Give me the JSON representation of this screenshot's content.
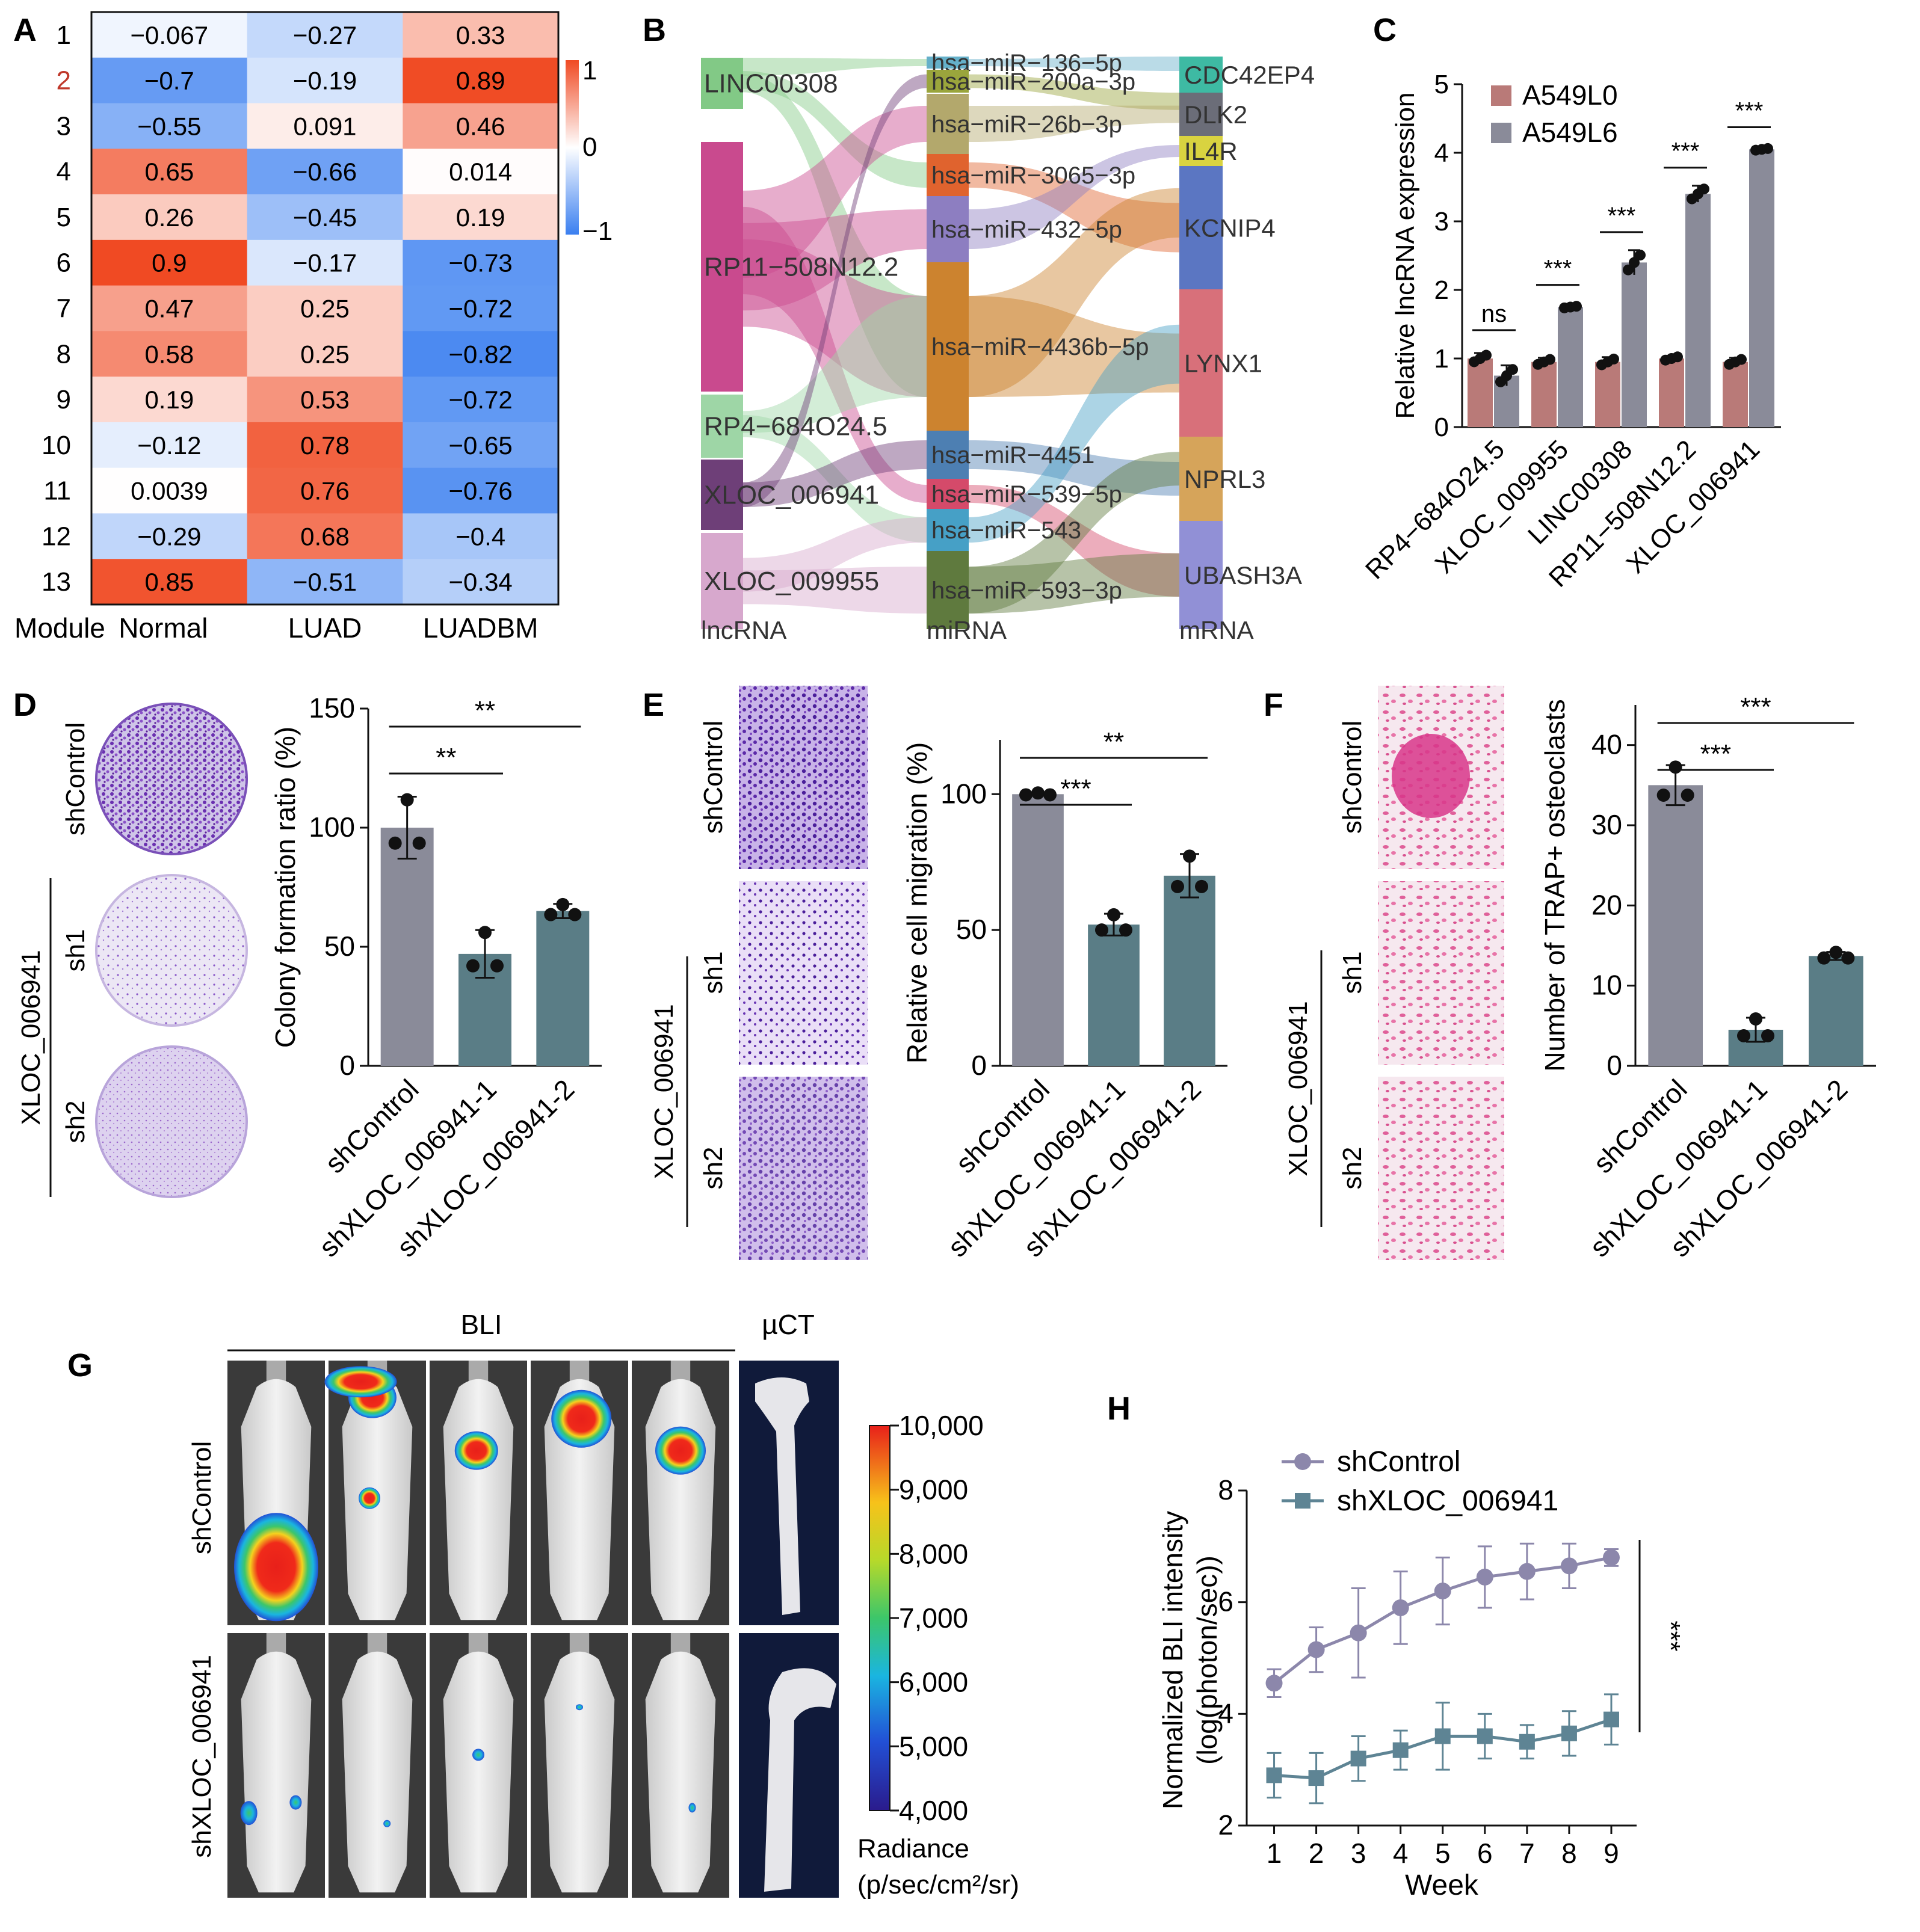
{
  "panels": {
    "A": "A",
    "B": "B",
    "C": "C",
    "D": "D",
    "E": "E",
    "F": "F",
    "G": "G",
    "H": "H"
  },
  "heatmap": {
    "rows": [
      "1",
      "2",
      "3",
      "4",
      "5",
      "6",
      "7",
      "8",
      "9",
      "10",
      "11",
      "12",
      "13"
    ],
    "highlight_row_color": "#c0392b",
    "columns": [
      "Normal",
      "LUAD",
      "LUADBM"
    ],
    "module_label": "Module",
    "values": [
      [
        -0.067,
        -0.27,
        0.33
      ],
      [
        -0.7,
        -0.19,
        0.89
      ],
      [
        -0.55,
        0.091,
        0.46
      ],
      [
        0.65,
        -0.66,
        0.014
      ],
      [
        0.26,
        -0.45,
        0.19
      ],
      [
        0.9,
        -0.17,
        -0.73
      ],
      [
        0.47,
        0.25,
        -0.72
      ],
      [
        0.58,
        0.25,
        -0.82
      ],
      [
        0.19,
        0.53,
        -0.72
      ],
      [
        -0.12,
        0.78,
        -0.65
      ],
      [
        0.0039,
        0.76,
        -0.76
      ],
      [
        -0.29,
        0.68,
        -0.4
      ],
      [
        0.85,
        -0.51,
        -0.34
      ]
    ],
    "labels": [
      [
        "−0.067",
        "−0.27",
        "0.33"
      ],
      [
        "−0.7",
        "−0.19",
        "0.89"
      ],
      [
        "−0.55",
        "0.091",
        "0.46"
      ],
      [
        "0.65",
        "−0.66",
        "0.014"
      ],
      [
        "0.26",
        "−0.45",
        "0.19"
      ],
      [
        "0.9",
        "−0.17",
        "−0.73"
      ],
      [
        "0.47",
        "0.25",
        "−0.72"
      ],
      [
        "0.58",
        "0.25",
        "−0.82"
      ],
      [
        "0.19",
        "0.53",
        "−0.72"
      ],
      [
        "−0.12",
        "0.78",
        "−0.65"
      ],
      [
        "0.0039",
        "0.76",
        "−0.76"
      ],
      [
        "−0.29",
        "0.68",
        "−0.4"
      ],
      [
        "0.85",
        "−0.51",
        "−0.34"
      ]
    ],
    "scale_labels": [
      "1",
      "0",
      "−1"
    ],
    "colors": {
      "high": "#f04a23",
      "mid": "#ffffff",
      "low": "#3a7ff0"
    }
  },
  "sankey": {
    "lncrna": [
      {
        "label": "LINC00308",
        "color": "#82c986"
      },
      {
        "label": "RP11−508N12.2",
        "color": "#c94a8e"
      },
      {
        "label": "RP4−684O24.5",
        "color": "#9ed6a6"
      },
      {
        "label": "XLOC_006941",
        "color": "#6e3f78"
      },
      {
        "label": "XLOC_009955",
        "color": "#d7a8cd"
      }
    ],
    "mirna": [
      {
        "label": "hsa−miR−136−5p",
        "color": "#65b0c9"
      },
      {
        "label": "hsa−miR−200a−3p",
        "color": "#9aa53c"
      },
      {
        "label": "hsa−miR−26b−3p",
        "color": "#b3a86c"
      },
      {
        "label": "hsa−miR−3065−3p",
        "color": "#e0632e"
      },
      {
        "label": "hsa−miR−432−5p",
        "color": "#8d7ec1"
      },
      {
        "label": "hsa−miR−4436b−5p",
        "color": "#cc832f"
      },
      {
        "label": "hsa−miR−4451",
        "color": "#4d7fb2"
      },
      {
        "label": "hsa−miR−539−5p",
        "color": "#d54a6a"
      },
      {
        "label": "hsa−miR−543",
        "color": "#46a0c6"
      },
      {
        "label": "hsa−miR−593−3p",
        "color": "#5f7a3e"
      }
    ],
    "mrna": [
      {
        "label": "CDC42EP4",
        "color": "#3ebaa3"
      },
      {
        "label": "DLK2",
        "color": "#6b6d78"
      },
      {
        "label": "IL4R",
        "color": "#d9d340"
      },
      {
        "label": "KCNIP4",
        "color": "#5b76c2"
      },
      {
        "label": "LYNX1",
        "color": "#d8707a"
      },
      {
        "label": "NPRL3",
        "color": "#d6a45a"
      },
      {
        "label": "UBASH3A",
        "color": "#9190d6"
      }
    ],
    "col_labels": [
      "lncRNA",
      "miRNA",
      "mRNA"
    ]
  },
  "chart_data": [
    {
      "type": "bar",
      "panel": "C",
      "ylabel": "Relative lncRNA expression",
      "ylim": [
        0,
        5
      ],
      "yticks": [
        "0",
        "1",
        "2",
        "3",
        "4",
        "5"
      ],
      "categories": [
        "RP4−684O24.5",
        "XLOC_009955",
        "LINC00308",
        "RP11−508N12.2",
        "XLOC_006941"
      ],
      "series": [
        {
          "name": "A549L0",
          "color": "#b97a78",
          "values": [
            1.0,
            0.95,
            0.95,
            1.0,
            0.95
          ],
          "err": [
            0.08,
            0.06,
            0.07,
            0.04,
            0.06
          ]
        },
        {
          "name": "A549L6",
          "color": "#8a8b99",
          "values": [
            0.75,
            1.75,
            2.4,
            3.4,
            4.05
          ],
          "err": [
            0.15,
            0.02,
            0.18,
            0.12,
            0.02
          ]
        }
      ],
      "significance": [
        "ns",
        "***",
        "***",
        "***",
        "***"
      ]
    },
    {
      "type": "bar",
      "panel": "D",
      "ylabel": "Colony formation ratio (%)",
      "ylim": [
        0,
        150
      ],
      "yticks": [
        "0",
        "50",
        "100",
        "150"
      ],
      "categories": [
        "shControl",
        "shXLOC_006941-1",
        "shXLOC_006941-2"
      ],
      "values": [
        100,
        47,
        65
      ],
      "err": [
        13,
        10,
        3
      ],
      "colors": [
        "#8a8b99",
        "#5a7d86",
        "#5a7d86"
      ],
      "significance": [
        {
          "from": 0,
          "to": 1,
          "label": "**"
        },
        {
          "from": 0,
          "to": 2,
          "label": "**"
        }
      ]
    },
    {
      "type": "bar",
      "panel": "E",
      "ylabel": "Relative cell migration (%)",
      "ylim": [
        0,
        120
      ],
      "yticks": [
        "0",
        "50",
        "100"
      ],
      "categories": [
        "shControl",
        "shXLOC_006941-1",
        "shXLOC_006941-2"
      ],
      "values": [
        100,
        52,
        70
      ],
      "err": [
        0.5,
        4,
        8
      ],
      "colors": [
        "#8a8b99",
        "#5a7d86",
        "#5a7d86"
      ],
      "significance": [
        {
          "from": 0,
          "to": 1,
          "label": "***"
        },
        {
          "from": 0,
          "to": 2,
          "label": "**"
        }
      ]
    },
    {
      "type": "bar",
      "panel": "F",
      "ylabel": "Number of TRAP+ osteoclasts",
      "ylim": [
        0,
        45
      ],
      "yticks": [
        "0",
        "10",
        "20",
        "30",
        "40"
      ],
      "categories": [
        "shControl",
        "shXLOC_006941-1",
        "shXLOC_006941-2"
      ],
      "values": [
        35,
        4.5,
        13.7
      ],
      "err": [
        2.5,
        1.5,
        0.5
      ],
      "colors": [
        "#8a8b99",
        "#5a7d86",
        "#5a7d86"
      ],
      "significance": [
        {
          "from": 0,
          "to": 1,
          "label": "***"
        },
        {
          "from": 0,
          "to": 2,
          "label": "***"
        }
      ]
    },
    {
      "type": "line",
      "panel": "H",
      "xlabel": "Week",
      "ylabel": "Normalized BLI intensity",
      "ylabel2": "(log(photon/sec))",
      "x": [
        1,
        2,
        3,
        4,
        5,
        6,
        7,
        8,
        9
      ],
      "xticks": [
        "1",
        "2",
        "3",
        "4",
        "5",
        "6",
        "7",
        "8",
        "9"
      ],
      "ylim": [
        2,
        8
      ],
      "yticks": [
        "2",
        "4",
        "6",
        "8"
      ],
      "series": [
        {
          "name": "shControl",
          "color": "#8c87ab",
          "marker": "circle",
          "values": [
            4.55,
            5.15,
            5.45,
            5.9,
            6.2,
            6.45,
            6.55,
            6.65,
            6.8
          ],
          "err": [
            0.25,
            0.4,
            0.8,
            0.65,
            0.6,
            0.55,
            0.5,
            0.4,
            0.15
          ]
        },
        {
          "name": "shXLOC_006941",
          "color": "#5e8494",
          "marker": "square",
          "values": [
            2.9,
            2.85,
            3.2,
            3.35,
            3.6,
            3.6,
            3.5,
            3.65,
            3.9
          ],
          "err": [
            0.4,
            0.45,
            0.4,
            0.35,
            0.6,
            0.4,
            0.3,
            0.4,
            0.45
          ]
        }
      ],
      "significance": "***"
    }
  ],
  "images": {
    "D": {
      "rows": [
        "shControl",
        "sh1",
        "sh2"
      ],
      "group": "XLOC_006941"
    },
    "E": {
      "rows": [
        "shControl",
        "sh1",
        "sh2"
      ],
      "group": "XLOC_006941"
    },
    "F": {
      "rows": [
        "shControl",
        "sh1",
        "sh2"
      ],
      "group": "XLOC_006941"
    }
  },
  "bli": {
    "top_label": "BLI",
    "ct_label": "µCT",
    "rows": [
      "shControl",
      "shXLOC_006941"
    ],
    "colorbar_ticks": [
      "10,000",
      "9,000",
      "8,000",
      "7,000",
      "6,000",
      "5,000",
      "4,000"
    ],
    "radiance_label": "Radiance",
    "radiance_units": "(p/sec/cm²/sr)"
  }
}
